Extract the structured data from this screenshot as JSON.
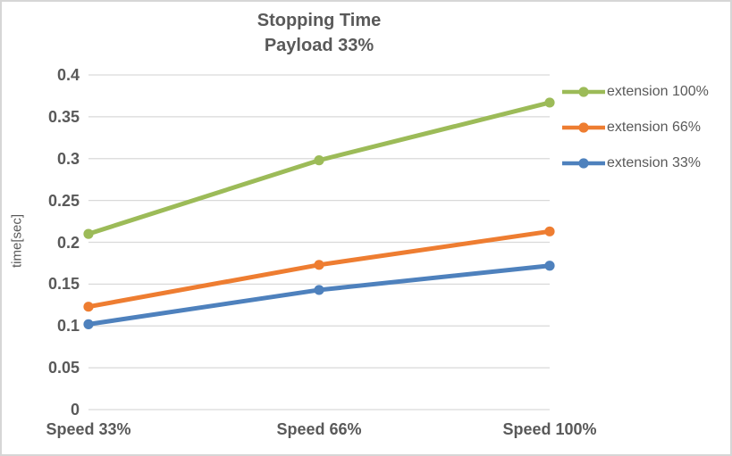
{
  "chart_data": {
    "type": "line",
    "title": "Stopping Time",
    "subtitle": "Payload 33%",
    "ylabel": "time[sec]",
    "categories": [
      "Speed 33%",
      "Speed 66%",
      "Speed 100%"
    ],
    "series": [
      {
        "name": "extension 100%",
        "color": "#9cbb58",
        "values": [
          0.21,
          0.298,
          0.367
        ]
      },
      {
        "name": "extension 66%",
        "color": "#ee7d31",
        "values": [
          0.123,
          0.173,
          0.213
        ]
      },
      {
        "name": "extension 33%",
        "color": "#4e81bd",
        "values": [
          0.102,
          0.143,
          0.172
        ]
      }
    ],
    "ylim": [
      0,
      0.4
    ],
    "ytick_step": 0.05,
    "ytick_labels": [
      "0",
      "0.05",
      "0.1",
      "0.15",
      "0.2",
      "0.25",
      "0.3",
      "0.35",
      "0.4"
    ],
    "grid": true,
    "legend_position": "right",
    "text_color": "#595959",
    "grid_color": "#d9d9d9",
    "background_color": "#ffffff",
    "border_color": "#d6d6d6"
  }
}
